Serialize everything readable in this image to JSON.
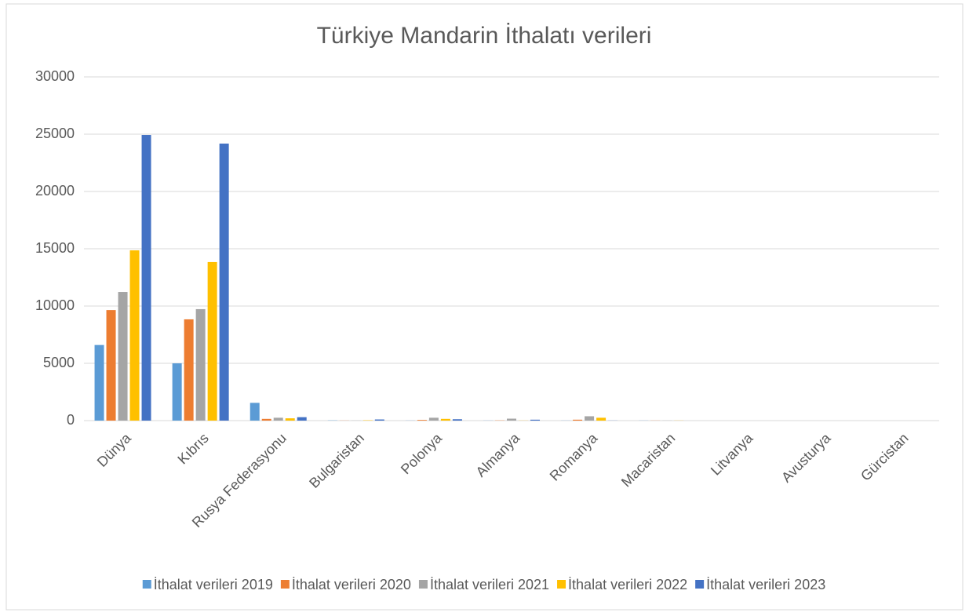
{
  "chart_data": {
    "type": "bar",
    "title": "Türkiye Mandarin İthalatı verileri",
    "categories": [
      "Dünya",
      "Kıbrıs",
      "Rusya Federasyonu",
      "Bulgaristan",
      "Polonya",
      "Almanya",
      "Romanya",
      "Macaristan",
      "Litvanya",
      "Avusturya",
      "Gürcistan"
    ],
    "series": [
      {
        "name": "İthalat verileri 2019",
        "color": "#5b9bd5",
        "values": [
          6600,
          5000,
          1550,
          20,
          10,
          10,
          10,
          10,
          0,
          0,
          0
        ]
      },
      {
        "name": "İthalat verileri 2020",
        "color": "#ed7d31",
        "values": [
          9650,
          8840,
          150,
          10,
          60,
          20,
          80,
          10,
          0,
          0,
          0
        ]
      },
      {
        "name": "İthalat verileri 2021",
        "color": "#a5a5a5",
        "values": [
          11230,
          9730,
          250,
          10,
          250,
          170,
          380,
          10,
          0,
          0,
          0
        ]
      },
      {
        "name": "İthalat verileri 2022",
        "color": "#ffc000",
        "values": [
          14860,
          13840,
          200,
          30,
          150,
          10,
          250,
          10,
          0,
          0,
          0
        ]
      },
      {
        "name": "İthalat verileri 2023",
        "color": "#4472c4",
        "values": [
          24930,
          24180,
          300,
          100,
          120,
          80,
          10,
          0,
          0,
          0,
          0
        ]
      }
    ],
    "ylim": [
      0,
      30000
    ],
    "yticks": [
      0,
      5000,
      10000,
      15000,
      20000,
      25000,
      30000
    ],
    "grid": true,
    "legend": "bottom"
  }
}
